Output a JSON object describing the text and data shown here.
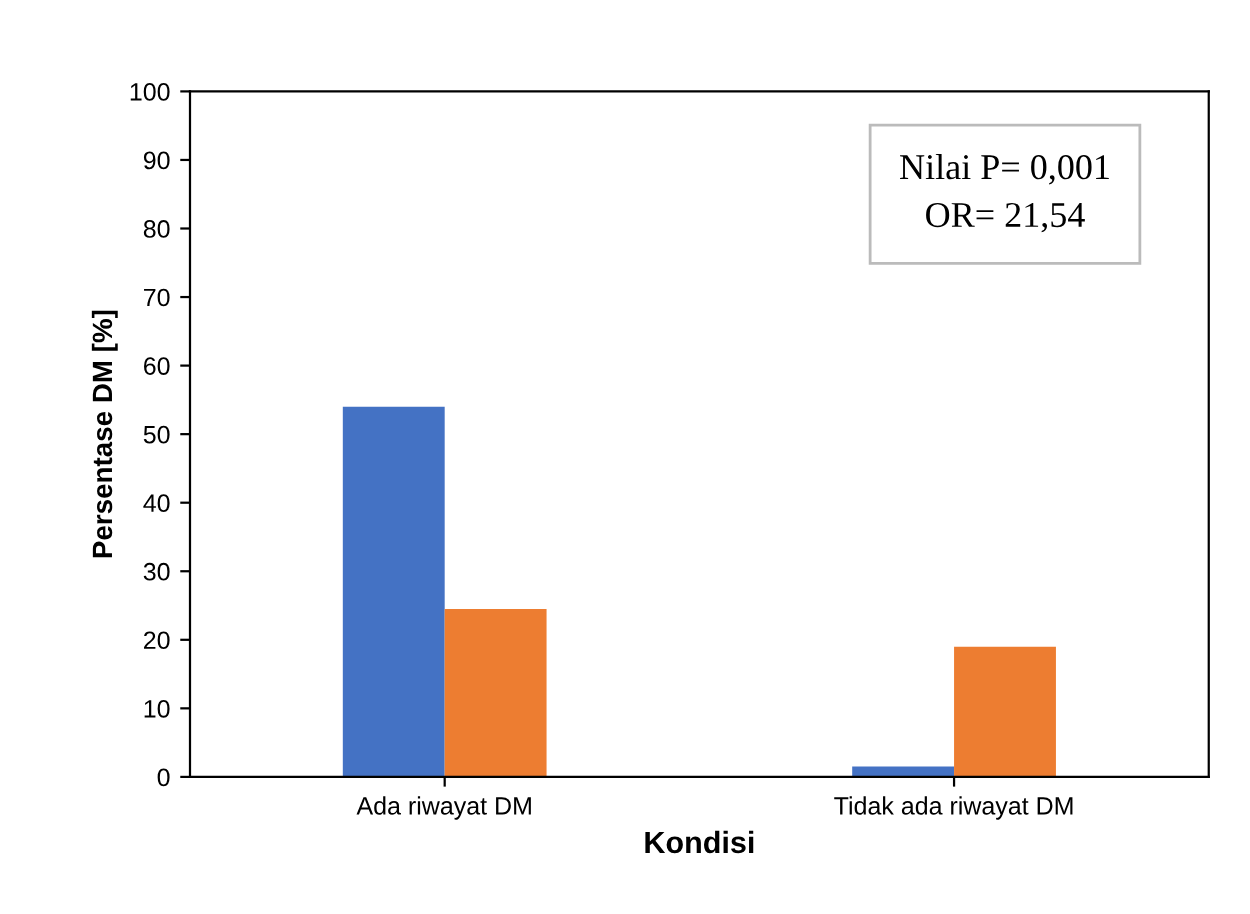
{
  "chart_data": {
    "type": "bar",
    "xlabel": "Kondisi",
    "ylabel": "Persentase DM [%]",
    "categories": [
      "Ada riwayat DM",
      "Tidak ada riwayat DM"
    ],
    "series": [
      {
        "color": "#4472c4",
        "values": [
          54,
          1.5
        ]
      },
      {
        "color": "#ed7d31",
        "values": [
          24.5,
          19
        ]
      }
    ],
    "ylim": [
      0,
      100
    ],
    "yticks": [
      0,
      10,
      20,
      30,
      40,
      50,
      60,
      70,
      80,
      90,
      100
    ],
    "grid": false,
    "legend": false,
    "annotations": [
      "Nilai P= 0,001\nOR= 21,54"
    ]
  }
}
